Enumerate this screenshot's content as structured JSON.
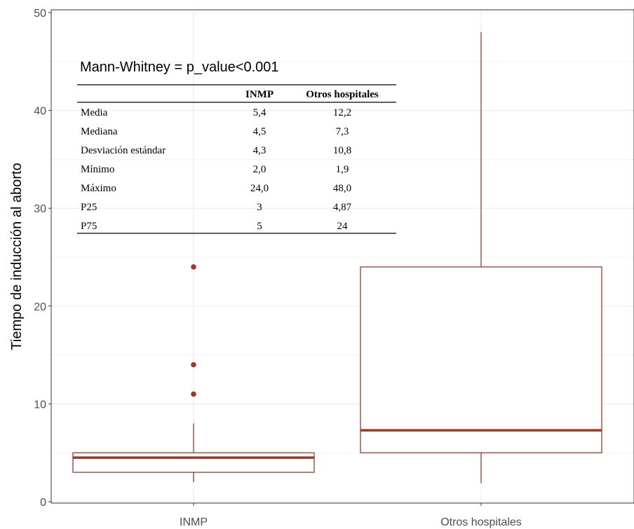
{
  "chart_data": {
    "type": "boxplot",
    "title": "",
    "xlabel": "",
    "ylabel": "Tiempo de inducción al aborto",
    "ylim": [
      0,
      50
    ],
    "yticks": [
      0,
      10,
      20,
      30,
      40,
      50
    ],
    "grid": true,
    "categories": [
      "INMP",
      "Otros hospitales"
    ],
    "boxes": [
      {
        "category": "INMP",
        "whisker_low": 2.0,
        "q1": 3,
        "median": 4.5,
        "q3": 5,
        "whisker_high": 8,
        "outliers": [
          11,
          14,
          24
        ]
      },
      {
        "category": "Otros hospitales",
        "whisker_low": 1.9,
        "q1": 5,
        "median": 7.3,
        "q3": 24,
        "whisker_high": 48,
        "outliers": []
      }
    ],
    "colors": {
      "box": "#a0382a",
      "median": "#a0382a",
      "outlier": "#a0382a",
      "grid": "#ebebeb",
      "axis_text": "#4d4d4d"
    },
    "annotation": {
      "test_label": "Mann-Whitney = p_value<0.001",
      "table": {
        "headers": [
          "",
          "INMP",
          "Otros hospitales"
        ],
        "rows": [
          [
            "Media",
            "5,4",
            "12,2"
          ],
          [
            "Mediana",
            "4,5",
            "7,3"
          ],
          [
            "Desviación estándar",
            "4,3",
            "10,8"
          ],
          [
            "Mínimo",
            "2,0",
            "1,9"
          ],
          [
            "Máximo",
            "24,0",
            "48,0"
          ],
          [
            "P25",
            "3",
            "4,87"
          ],
          [
            "P75",
            "5",
            "24"
          ]
        ]
      }
    }
  }
}
